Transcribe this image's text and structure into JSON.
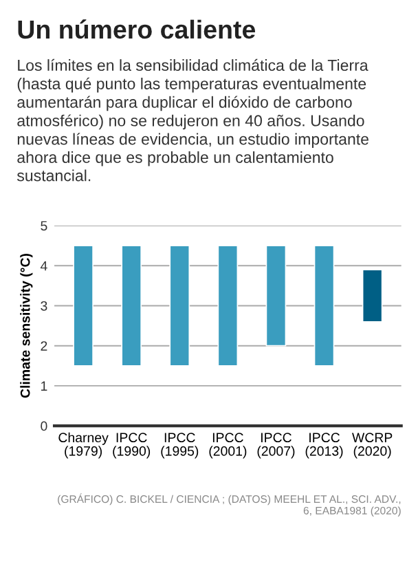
{
  "chart_data": {
    "type": "bar",
    "title": "Un número caliente",
    "subtitle": "Los límites en la sensibilidad climática de la Tierra\n(hasta qué punto las temperaturas eventualmente\naumentarán para duplicar el dióxido de carbono\natmosférico) no se redujeron en 40 años. Usando\nnuevas líneas de evidencia, un estudio importante\nahora dice que es probable un calentamiento\nsustancial.",
    "ylabel": "Climate sensitivity (°C)",
    "categories": [
      "Charney\n(1979)",
      "IPCC\n(1990)",
      "IPCC\n(1995)",
      "IPCC\n(2001)",
      "IPCC\n(2007)",
      "IPCC\n(2013)",
      "WCRP\n(2020)"
    ],
    "base": [
      1.5,
      1.5,
      1.5,
      1.5,
      2,
      1.5,
      2.6
    ],
    "values": [
      3,
      3,
      3,
      3,
      2.5,
      3,
      1.3
    ],
    "colors": [
      "#3a9dbf",
      "#3a9dbf",
      "#3a9dbf",
      "#3a9dbf",
      "#3a9dbf",
      "#3a9dbf",
      "#005f85"
    ],
    "ylim": [
      0,
      5
    ],
    "yticks": [
      0,
      1,
      2,
      3,
      4,
      5
    ],
    "grid": "y",
    "annotations": [
      "(GRÁFICO) C. BICKEL / CIENCIA ; (DATOS) MEEHL ET AL., SCI. ADV.,\n6, EABA1981 (2020)"
    ]
  }
}
